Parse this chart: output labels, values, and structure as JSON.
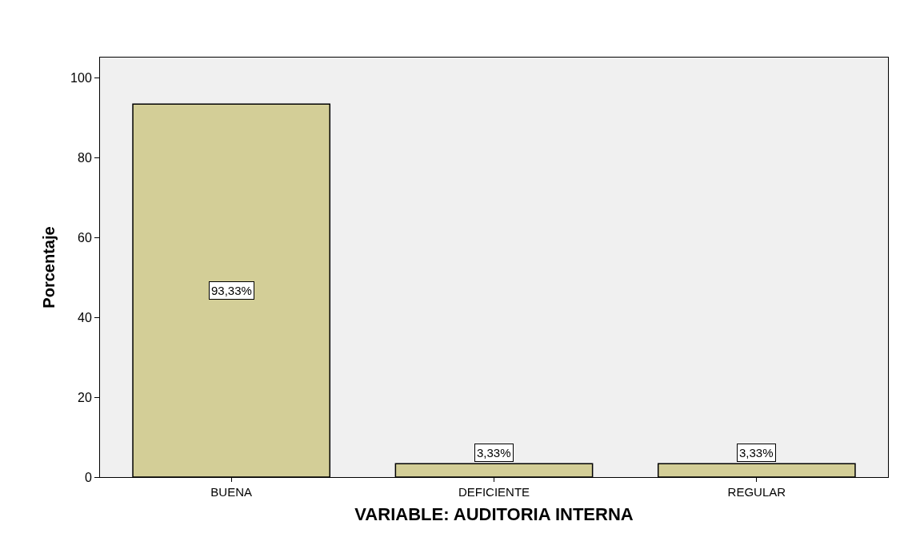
{
  "chart_data": {
    "type": "bar",
    "xlabel": "VARIABLE: AUDITORIA INTERNA",
    "ylabel": "Porcentaje",
    "categories": [
      "BUENA",
      "DEFICIENTE",
      "REGULAR"
    ],
    "values": [
      93.33,
      3.33,
      3.33
    ],
    "value_labels": [
      "93,33%",
      "3,33%",
      "3,33%"
    ],
    "color": "#d3ce97",
    "ylim": [
      0,
      105
    ],
    "yticks": [
      0,
      20,
      40,
      60,
      80,
      100
    ],
    "grid": false
  }
}
